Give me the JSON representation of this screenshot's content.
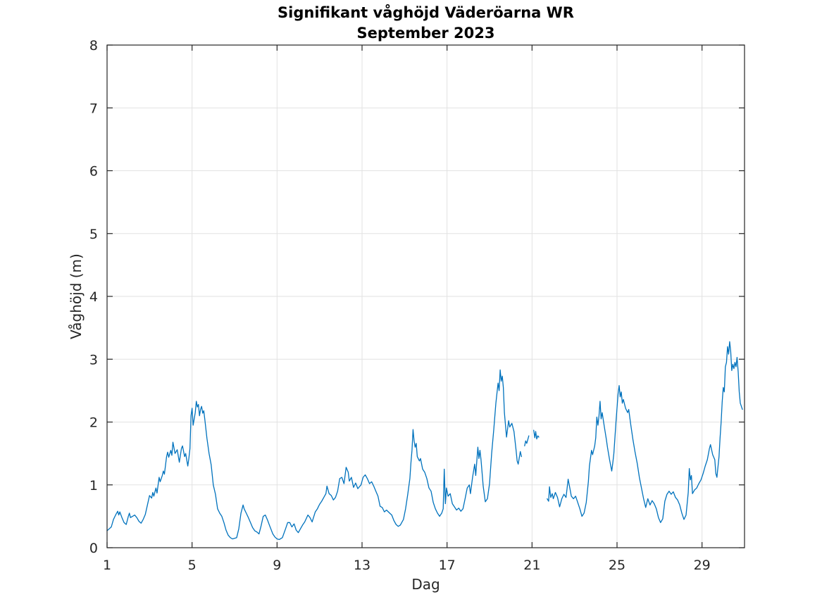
{
  "chart_data": {
    "type": "line",
    "title": "Signifikant våghöjd Väderöarna WR",
    "subtitle": "September 2023",
    "xlabel": "Dag",
    "ylabel": "Våghöjd (m)",
    "xlim": [
      1,
      31
    ],
    "ylim": [
      0,
      8
    ],
    "xticks": [
      1,
      5,
      9,
      13,
      17,
      21,
      25,
      29
    ],
    "yticks": [
      0,
      1,
      2,
      3,
      4,
      5,
      6,
      7,
      8
    ],
    "grid": true,
    "legend": "none",
    "line_color": "#0072BD",
    "axis_color": "#262626",
    "grid_color": "#e2e2e2",
    "background_color": "#ffffff",
    "series_name": "Signifikant våghöjd (m)",
    "note": "line has data gaps between day 20.5-20.65, 20.85-21.08, 21.32-21.71",
    "segments": [
      [
        [
          1.0,
          0.27
        ],
        [
          1.1,
          0.3
        ],
        [
          1.2,
          0.33
        ],
        [
          1.3,
          0.45
        ],
        [
          1.4,
          0.52
        ],
        [
          1.5,
          0.58
        ],
        [
          1.55,
          0.52
        ],
        [
          1.6,
          0.57
        ],
        [
          1.7,
          0.48
        ],
        [
          1.8,
          0.4
        ],
        [
          1.9,
          0.37
        ],
        [
          2.0,
          0.5
        ],
        [
          2.05,
          0.55
        ],
        [
          2.1,
          0.48
        ],
        [
          2.2,
          0.5
        ],
        [
          2.3,
          0.52
        ],
        [
          2.4,
          0.48
        ],
        [
          2.5,
          0.42
        ],
        [
          2.6,
          0.39
        ],
        [
          2.7,
          0.45
        ],
        [
          2.8,
          0.53
        ],
        [
          2.9,
          0.68
        ],
        [
          3.0,
          0.83
        ],
        [
          3.1,
          0.79
        ],
        [
          3.15,
          0.88
        ],
        [
          3.2,
          0.82
        ],
        [
          3.3,
          0.95
        ],
        [
          3.35,
          0.87
        ],
        [
          3.45,
          1.12
        ],
        [
          3.5,
          1.05
        ],
        [
          3.6,
          1.15
        ],
        [
          3.65,
          1.22
        ],
        [
          3.7,
          1.17
        ],
        [
          3.8,
          1.45
        ],
        [
          3.85,
          1.52
        ],
        [
          3.9,
          1.44
        ],
        [
          4.0,
          1.55
        ],
        [
          4.05,
          1.47
        ],
        [
          4.1,
          1.68
        ],
        [
          4.2,
          1.5
        ],
        [
          4.3,
          1.56
        ],
        [
          4.4,
          1.36
        ],
        [
          4.5,
          1.58
        ],
        [
          4.55,
          1.62
        ],
        [
          4.65,
          1.45
        ],
        [
          4.7,
          1.5
        ],
        [
          4.8,
          1.3
        ],
        [
          4.85,
          1.42
        ],
        [
          4.9,
          1.58
        ],
        [
          4.95,
          2.1
        ],
        [
          5.0,
          2.22
        ],
        [
          5.05,
          1.95
        ],
        [
          5.1,
          2.05
        ],
        [
          5.15,
          2.15
        ],
        [
          5.2,
          2.33
        ],
        [
          5.25,
          2.24
        ],
        [
          5.3,
          2.28
        ],
        [
          5.35,
          2.1
        ],
        [
          5.4,
          2.2
        ],
        [
          5.45,
          2.25
        ],
        [
          5.5,
          2.14
        ],
        [
          5.55,
          2.18
        ],
        [
          5.6,
          2.04
        ],
        [
          5.7,
          1.74
        ],
        [
          5.8,
          1.5
        ],
        [
          5.9,
          1.32
        ],
        [
          6.0,
          1.0
        ],
        [
          6.1,
          0.85
        ],
        [
          6.2,
          0.62
        ],
        [
          6.3,
          0.55
        ],
        [
          6.4,
          0.5
        ],
        [
          6.5,
          0.4
        ],
        [
          6.6,
          0.28
        ],
        [
          6.7,
          0.2
        ],
        [
          6.8,
          0.16
        ],
        [
          6.9,
          0.14
        ],
        [
          7.0,
          0.15
        ],
        [
          7.1,
          0.16
        ],
        [
          7.2,
          0.3
        ],
        [
          7.3,
          0.55
        ],
        [
          7.4,
          0.68
        ],
        [
          7.45,
          0.62
        ],
        [
          7.55,
          0.55
        ],
        [
          7.65,
          0.48
        ],
        [
          7.75,
          0.4
        ],
        [
          7.85,
          0.32
        ],
        [
          7.95,
          0.27
        ],
        [
          8.05,
          0.25
        ],
        [
          8.15,
          0.22
        ],
        [
          8.25,
          0.35
        ],
        [
          8.35,
          0.5
        ],
        [
          8.45,
          0.52
        ],
        [
          8.55,
          0.44
        ],
        [
          8.65,
          0.35
        ],
        [
          8.8,
          0.22
        ],
        [
          8.9,
          0.17
        ],
        [
          9.0,
          0.14
        ],
        [
          9.1,
          0.13
        ],
        [
          9.25,
          0.16
        ],
        [
          9.4,
          0.3
        ],
        [
          9.5,
          0.4
        ],
        [
          9.6,
          0.4
        ],
        [
          9.7,
          0.33
        ],
        [
          9.8,
          0.38
        ],
        [
          9.9,
          0.28
        ],
        [
          10.0,
          0.24
        ],
        [
          10.1,
          0.3
        ],
        [
          10.2,
          0.36
        ],
        [
          10.3,
          0.41
        ],
        [
          10.45,
          0.52
        ],
        [
          10.55,
          0.48
        ],
        [
          10.65,
          0.41
        ],
        [
          10.8,
          0.57
        ],
        [
          10.9,
          0.62
        ],
        [
          11.0,
          0.69
        ],
        [
          11.1,
          0.74
        ],
        [
          11.2,
          0.8
        ],
        [
          11.3,
          0.86
        ],
        [
          11.35,
          0.98
        ],
        [
          11.45,
          0.86
        ],
        [
          11.55,
          0.83
        ],
        [
          11.65,
          0.76
        ],
        [
          11.75,
          0.8
        ],
        [
          11.85,
          0.9
        ],
        [
          11.95,
          1.1
        ],
        [
          12.05,
          1.12
        ],
        [
          12.15,
          1.02
        ],
        [
          12.25,
          1.28
        ],
        [
          12.35,
          1.2
        ],
        [
          12.4,
          1.06
        ],
        [
          12.5,
          1.12
        ],
        [
          12.6,
          0.96
        ],
        [
          12.7,
          1.03
        ],
        [
          12.8,
          0.94
        ],
        [
          12.95,
          1.0
        ],
        [
          13.05,
          1.12
        ],
        [
          13.15,
          1.16
        ],
        [
          13.25,
          1.1
        ],
        [
          13.35,
          1.02
        ],
        [
          13.45,
          1.05
        ],
        [
          13.55,
          0.98
        ],
        [
          13.65,
          0.9
        ],
        [
          13.75,
          0.82
        ],
        [
          13.85,
          0.66
        ],
        [
          13.95,
          0.64
        ],
        [
          14.05,
          0.57
        ],
        [
          14.15,
          0.6
        ],
        [
          14.3,
          0.55
        ],
        [
          14.4,
          0.52
        ],
        [
          14.5,
          0.43
        ],
        [
          14.6,
          0.37
        ],
        [
          14.7,
          0.34
        ],
        [
          14.8,
          0.36
        ],
        [
          14.95,
          0.45
        ],
        [
          15.05,
          0.62
        ],
        [
          15.15,
          0.85
        ],
        [
          15.25,
          1.1
        ],
        [
          15.3,
          1.35
        ],
        [
          15.35,
          1.55
        ],
        [
          15.4,
          1.88
        ],
        [
          15.45,
          1.7
        ],
        [
          15.5,
          1.6
        ],
        [
          15.55,
          1.66
        ],
        [
          15.6,
          1.45
        ],
        [
          15.7,
          1.38
        ],
        [
          15.75,
          1.42
        ],
        [
          15.85,
          1.25
        ],
        [
          15.95,
          1.2
        ],
        [
          16.05,
          1.1
        ],
        [
          16.15,
          0.95
        ],
        [
          16.25,
          0.9
        ],
        [
          16.35,
          0.72
        ],
        [
          16.45,
          0.62
        ],
        [
          16.55,
          0.55
        ],
        [
          16.65,
          0.5
        ],
        [
          16.75,
          0.55
        ],
        [
          16.82,
          0.62
        ],
        [
          16.87,
          1.25
        ],
        [
          16.92,
          0.7
        ],
        [
          16.97,
          0.95
        ],
        [
          17.05,
          0.82
        ],
        [
          17.15,
          0.86
        ],
        [
          17.25,
          0.7
        ],
        [
          17.35,
          0.65
        ],
        [
          17.45,
          0.6
        ],
        [
          17.55,
          0.63
        ],
        [
          17.65,
          0.58
        ],
        [
          17.75,
          0.62
        ],
        [
          17.85,
          0.78
        ],
        [
          17.95,
          0.95
        ],
        [
          18.05,
          1.0
        ],
        [
          18.1,
          0.86
        ],
        [
          18.2,
          1.12
        ],
        [
          18.3,
          1.33
        ],
        [
          18.35,
          1.15
        ],
        [
          18.45,
          1.6
        ],
        [
          18.5,
          1.42
        ],
        [
          18.55,
          1.55
        ],
        [
          18.6,
          1.4
        ],
        [
          18.7,
          0.98
        ],
        [
          18.8,
          0.73
        ],
        [
          18.9,
          0.78
        ],
        [
          19.0,
          1.02
        ],
        [
          19.1,
          1.5
        ],
        [
          19.2,
          1.88
        ],
        [
          19.3,
          2.3
        ],
        [
          19.4,
          2.62
        ],
        [
          19.45,
          2.5
        ],
        [
          19.5,
          2.83
        ],
        [
          19.55,
          2.65
        ],
        [
          19.6,
          2.73
        ],
        [
          19.65,
          2.55
        ],
        [
          19.7,
          2.15
        ],
        [
          19.8,
          1.76
        ],
        [
          19.9,
          2.02
        ],
        [
          19.95,
          1.92
        ],
        [
          20.05,
          1.98
        ],
        [
          20.15,
          1.85
        ],
        [
          20.25,
          1.55
        ],
        [
          20.3,
          1.38
        ],
        [
          20.35,
          1.33
        ],
        [
          20.45,
          1.53
        ],
        [
          20.5,
          1.45
        ]
      ],
      [
        [
          20.65,
          1.62
        ],
        [
          20.7,
          1.7
        ],
        [
          20.75,
          1.66
        ],
        [
          20.85,
          1.78
        ]
      ],
      [
        [
          21.08,
          1.87
        ],
        [
          21.13,
          1.75
        ],
        [
          21.17,
          1.85
        ],
        [
          21.22,
          1.73
        ],
        [
          21.27,
          1.78
        ],
        [
          21.32,
          1.76
        ]
      ],
      [
        [
          21.71,
          0.78
        ],
        [
          21.78,
          0.74
        ],
        [
          21.82,
          0.97
        ],
        [
          21.88,
          0.8
        ],
        [
          21.95,
          0.86
        ],
        [
          22.0,
          0.78
        ],
        [
          22.1,
          0.88
        ],
        [
          22.2,
          0.8
        ],
        [
          22.3,
          0.65
        ],
        [
          22.4,
          0.78
        ],
        [
          22.5,
          0.85
        ],
        [
          22.6,
          0.8
        ],
        [
          22.7,
          1.09
        ],
        [
          22.78,
          0.95
        ],
        [
          22.85,
          0.82
        ],
        [
          22.95,
          0.78
        ],
        [
          23.05,
          0.82
        ],
        [
          23.15,
          0.72
        ],
        [
          23.25,
          0.62
        ],
        [
          23.35,
          0.5
        ],
        [
          23.45,
          0.55
        ],
        [
          23.55,
          0.72
        ],
        [
          23.65,
          1.05
        ],
        [
          23.7,
          1.3
        ],
        [
          23.8,
          1.55
        ],
        [
          23.85,
          1.48
        ],
        [
          23.95,
          1.62
        ],
        [
          24.0,
          1.75
        ],
        [
          24.05,
          2.08
        ],
        [
          24.1,
          1.95
        ],
        [
          24.15,
          2.1
        ],
        [
          24.2,
          2.33
        ],
        [
          24.25,
          2.05
        ],
        [
          24.3,
          2.15
        ],
        [
          24.4,
          1.93
        ],
        [
          24.5,
          1.72
        ],
        [
          24.55,
          1.6
        ],
        [
          24.65,
          1.4
        ],
        [
          24.75,
          1.22
        ],
        [
          24.8,
          1.35
        ],
        [
          24.85,
          1.5
        ],
        [
          24.95,
          2.0
        ],
        [
          25.05,
          2.45
        ],
        [
          25.1,
          2.58
        ],
        [
          25.15,
          2.4
        ],
        [
          25.2,
          2.48
        ],
        [
          25.25,
          2.3
        ],
        [
          25.3,
          2.36
        ],
        [
          25.4,
          2.22
        ],
        [
          25.5,
          2.15
        ],
        [
          25.55,
          2.2
        ],
        [
          25.65,
          1.95
        ],
        [
          25.75,
          1.72
        ],
        [
          25.85,
          1.52
        ],
        [
          25.95,
          1.34
        ],
        [
          26.05,
          1.12
        ],
        [
          26.15,
          0.95
        ],
        [
          26.25,
          0.78
        ],
        [
          26.35,
          0.64
        ],
        [
          26.45,
          0.78
        ],
        [
          26.55,
          0.68
        ],
        [
          26.65,
          0.75
        ],
        [
          26.75,
          0.7
        ],
        [
          26.85,
          0.62
        ],
        [
          26.95,
          0.48
        ],
        [
          27.05,
          0.4
        ],
        [
          27.15,
          0.46
        ],
        [
          27.25,
          0.74
        ],
        [
          27.35,
          0.85
        ],
        [
          27.45,
          0.9
        ],
        [
          27.55,
          0.85
        ],
        [
          27.65,
          0.89
        ],
        [
          27.75,
          0.8
        ],
        [
          27.85,
          0.76
        ],
        [
          27.95,
          0.68
        ],
        [
          28.05,
          0.55
        ],
        [
          28.15,
          0.45
        ],
        [
          28.25,
          0.52
        ],
        [
          28.35,
          0.88
        ],
        [
          28.4,
          1.26
        ],
        [
          28.45,
          1.08
        ],
        [
          28.5,
          1.15
        ],
        [
          28.55,
          0.86
        ],
        [
          28.65,
          0.92
        ],
        [
          28.75,
          0.95
        ],
        [
          28.85,
          1.02
        ],
        [
          28.95,
          1.08
        ],
        [
          29.05,
          1.18
        ],
        [
          29.15,
          1.3
        ],
        [
          29.25,
          1.4
        ],
        [
          29.35,
          1.58
        ],
        [
          29.4,
          1.64
        ],
        [
          29.5,
          1.48
        ],
        [
          29.6,
          1.4
        ],
        [
          29.65,
          1.18
        ],
        [
          29.7,
          1.12
        ],
        [
          29.8,
          1.45
        ],
        [
          29.85,
          1.75
        ],
        [
          29.9,
          2.0
        ],
        [
          29.95,
          2.32
        ],
        [
          30.0,
          2.55
        ],
        [
          30.05,
          2.48
        ],
        [
          30.1,
          2.88
        ],
        [
          30.15,
          2.95
        ],
        [
          30.2,
          3.2
        ],
        [
          30.25,
          3.08
        ],
        [
          30.3,
          3.28
        ],
        [
          30.35,
          3.12
        ],
        [
          30.4,
          2.82
        ],
        [
          30.45,
          2.92
        ],
        [
          30.5,
          2.85
        ],
        [
          30.55,
          2.95
        ],
        [
          30.6,
          2.88
        ],
        [
          30.65,
          3.03
        ],
        [
          30.7,
          2.8
        ],
        [
          30.75,
          2.48
        ],
        [
          30.8,
          2.3
        ],
        [
          30.9,
          2.2
        ]
      ]
    ]
  }
}
